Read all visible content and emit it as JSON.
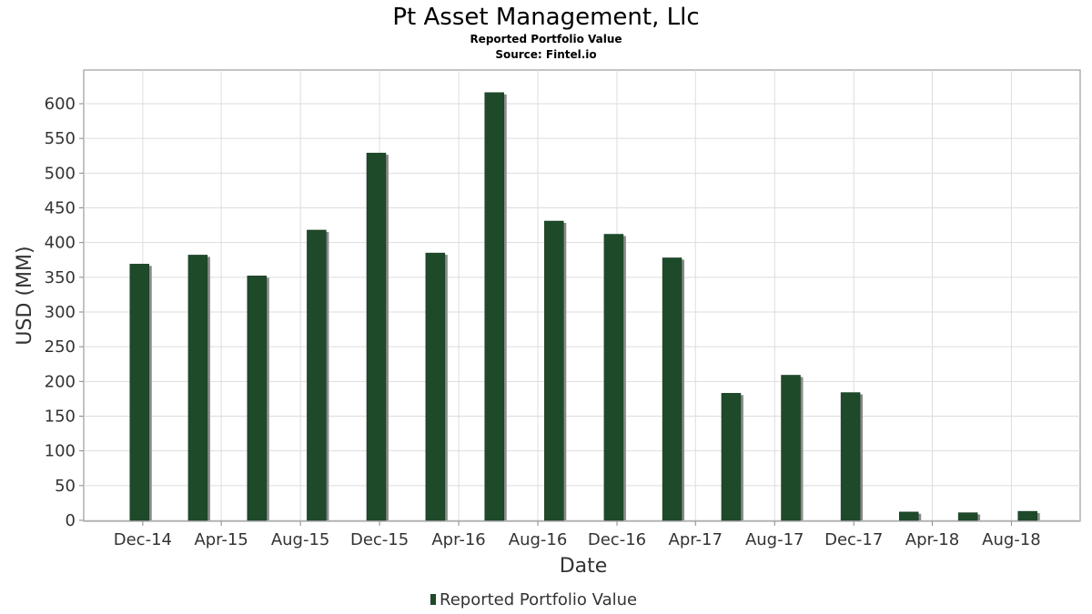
{
  "header": {
    "title": "Pt Asset Management, Llc",
    "subtitle": "Reported Portfolio Value",
    "source": "Source: Fintel.io"
  },
  "colors": {
    "bar": "#1e4a2a",
    "bar_shadow": "#8a8a8a",
    "grid": "#dddddd",
    "axis": "#888888"
  },
  "chart_data": {
    "type": "bar",
    "title": "Pt Asset Management, Llc",
    "subtitle": "Reported Portfolio Value",
    "xlabel": "Date",
    "ylabel": "USD (MM)",
    "ylim": [
      0,
      645
    ],
    "yticks": [
      0,
      50,
      100,
      150,
      200,
      250,
      300,
      350,
      400,
      450,
      500,
      550,
      600
    ],
    "grid": true,
    "legend_position": "bottom",
    "date_range": [
      "2014-09-01",
      "2018-11-15"
    ],
    "xtick_labels": [
      {
        "label": "Dec-14",
        "date": "2014-12-01"
      },
      {
        "label": "Apr-15",
        "date": "2015-04-01"
      },
      {
        "label": "Aug-15",
        "date": "2015-08-01"
      },
      {
        "label": "Dec-15",
        "date": "2015-12-01"
      },
      {
        "label": "Apr-16",
        "date": "2016-04-01"
      },
      {
        "label": "Aug-16",
        "date": "2016-08-01"
      },
      {
        "label": "Dec-16",
        "date": "2016-12-01"
      },
      {
        "label": "Apr-17",
        "date": "2017-04-01"
      },
      {
        "label": "Aug-17",
        "date": "2017-08-01"
      },
      {
        "label": "Dec-17",
        "date": "2017-12-01"
      },
      {
        "label": "Apr-18",
        "date": "2018-04-01"
      },
      {
        "label": "Aug-18",
        "date": "2018-08-01"
      }
    ],
    "series": [
      {
        "name": "Reported Portfolio Value",
        "points": [
          {
            "date": "2014-12-31",
            "value": 369
          },
          {
            "date": "2015-03-31",
            "value": 382
          },
          {
            "date": "2015-06-30",
            "value": 352
          },
          {
            "date": "2015-09-30",
            "value": 418
          },
          {
            "date": "2015-12-31",
            "value": 529
          },
          {
            "date": "2016-03-31",
            "value": 385
          },
          {
            "date": "2016-06-30",
            "value": 616
          },
          {
            "date": "2016-09-30",
            "value": 431
          },
          {
            "date": "2016-12-31",
            "value": 412
          },
          {
            "date": "2017-03-31",
            "value": 378
          },
          {
            "date": "2017-06-30",
            "value": 183
          },
          {
            "date": "2017-09-30",
            "value": 209
          },
          {
            "date": "2017-12-31",
            "value": 184
          },
          {
            "date": "2018-03-31",
            "value": 12
          },
          {
            "date": "2018-06-30",
            "value": 11
          },
          {
            "date": "2018-09-30",
            "value": 13
          }
        ]
      }
    ]
  }
}
